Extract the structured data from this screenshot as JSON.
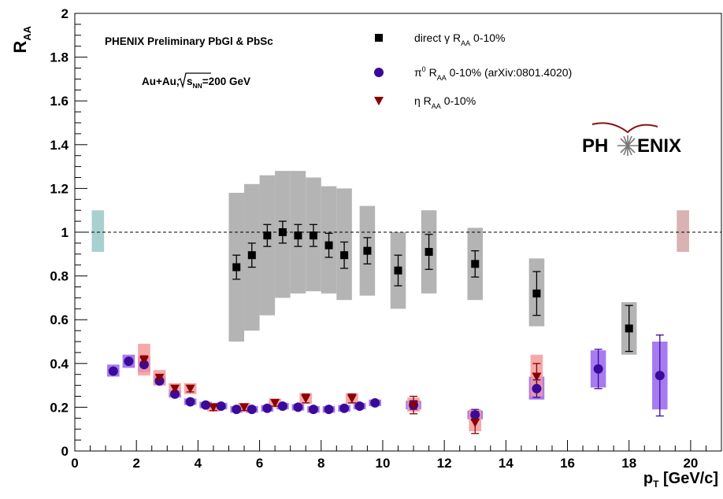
{
  "chart_data": {
    "type": "scatter",
    "ylabel_main": "R",
    "ylabel_sub": "AA",
    "xlabel_main": "p",
    "xlabel_sub": "T",
    "xlabel_unit": " [GeV/c]",
    "xlim": [
      0,
      21
    ],
    "ylim": [
      0,
      2
    ],
    "x_ticks": [
      0,
      2,
      4,
      6,
      8,
      10,
      12,
      14,
      16,
      18,
      20
    ],
    "y_ticks": [
      0,
      0.2,
      0.4,
      0.6,
      0.8,
      1,
      1.2,
      1.4,
      1.6,
      1.8,
      2
    ],
    "y_tick_labels": [
      "0",
      "0.2",
      "0.4",
      "0.6",
      "0.8",
      "1",
      "1.2",
      "1.4",
      "1.6",
      "1.8",
      "2"
    ],
    "reference_line_y": 1,
    "annotation_1": "PHENIX Preliminary PbGl & PbSc",
    "annotation_2_pre": "Au+Au,",
    "annotation_2_rad": "s",
    "annotation_2_sub": "NN",
    "annotation_2_post": "=200 GeV",
    "logo_left": "PH",
    "logo_right": "ENIX",
    "legend_placement": "top-right",
    "colors": {
      "gamma_box": "#b4b4b4",
      "pi0_marker": "#3a0a9a",
      "pi0_box": "#a77bf0",
      "eta_marker": "#8b0000",
      "eta_box": "#f59a9a",
      "left_norm": "#a9d0d0",
      "right_norm": "#d9b3b3"
    },
    "norm_boxes": [
      {
        "x": 0.75,
        "ylo": 0.91,
        "yhi": 1.1,
        "color": "left_norm"
      },
      {
        "x": 19.75,
        "ylo": 0.91,
        "yhi": 1.1,
        "color": "right_norm"
      }
    ],
    "series": [
      {
        "name": "direct",
        "name_mid": " γ R",
        "name_sub": "AA",
        "name_post": " 0-10%",
        "marker": "square",
        "points": [
          {
            "x": 5.25,
            "y": 0.84,
            "err": 0.055,
            "syslo": 0.5,
            "syshi": 1.18,
            "bw": 0.5
          },
          {
            "x": 5.75,
            "y": 0.895,
            "err": 0.055,
            "syslo": 0.55,
            "syshi": 1.22,
            "bw": 0.5
          },
          {
            "x": 6.25,
            "y": 0.985,
            "err": 0.05,
            "syslo": 0.62,
            "syshi": 1.26,
            "bw": 0.5
          },
          {
            "x": 6.75,
            "y": 1.0,
            "err": 0.05,
            "syslo": 0.7,
            "syshi": 1.28,
            "bw": 0.5
          },
          {
            "x": 7.25,
            "y": 0.985,
            "err": 0.05,
            "syslo": 0.72,
            "syshi": 1.28,
            "bw": 0.5
          },
          {
            "x": 7.75,
            "y": 0.985,
            "err": 0.05,
            "syslo": 0.73,
            "syshi": 1.25,
            "bw": 0.5
          },
          {
            "x": 8.25,
            "y": 0.94,
            "err": 0.055,
            "syslo": 0.72,
            "syshi": 1.21,
            "bw": 0.5
          },
          {
            "x": 8.75,
            "y": 0.895,
            "err": 0.06,
            "syslo": 0.69,
            "syshi": 1.2,
            "bw": 0.5
          },
          {
            "x": 9.5,
            "y": 0.915,
            "err": 0.06,
            "syslo": 0.71,
            "syshi": 1.12,
            "bw": 0.5
          },
          {
            "x": 10.5,
            "y": 0.825,
            "err": 0.07,
            "syslo": 0.65,
            "syshi": 1.0,
            "bw": 0.5
          },
          {
            "x": 11.5,
            "y": 0.91,
            "err": 0.08,
            "syslo": 0.72,
            "syshi": 1.1,
            "bw": 0.5
          },
          {
            "x": 13.0,
            "y": 0.855,
            "err": 0.06,
            "syslo": 0.69,
            "syshi": 1.02,
            "bw": 0.5
          },
          {
            "x": 15.0,
            "y": 0.72,
            "err": 0.1,
            "syslo": 0.57,
            "syshi": 0.88,
            "bw": 0.5
          },
          {
            "x": 18.0,
            "y": 0.56,
            "err": 0.105,
            "syslo": 0.44,
            "syshi": 0.68,
            "bw": 0.5
          }
        ]
      },
      {
        "name": "π",
        "name_sup": "0",
        "name_mid": " R",
        "name_sub": "AA",
        "name_post": " 0-10% (arXiv:0801.4020)",
        "marker": "circle",
        "points": [
          {
            "x": 1.25,
            "y": 0.365,
            "err": 0.01,
            "syslo": 0.34,
            "syshi": 0.395,
            "bw": 0.4
          },
          {
            "x": 1.75,
            "y": 0.41,
            "err": 0.01,
            "syslo": 0.38,
            "syshi": 0.44,
            "bw": 0.4
          },
          {
            "x": 2.25,
            "y": 0.395,
            "err": 0.01,
            "syslo": 0.36,
            "syshi": 0.43,
            "bw": 0.4
          },
          {
            "x": 2.75,
            "y": 0.32,
            "err": 0.01,
            "syslo": 0.3,
            "syshi": 0.345,
            "bw": 0.4
          },
          {
            "x": 3.25,
            "y": 0.26,
            "err": 0.01,
            "syslo": 0.245,
            "syshi": 0.28,
            "bw": 0.4
          },
          {
            "x": 3.75,
            "y": 0.225,
            "err": 0.008,
            "syslo": 0.21,
            "syshi": 0.24,
            "bw": 0.4
          },
          {
            "x": 4.25,
            "y": 0.21,
            "err": 0.008,
            "syslo": 0.195,
            "syshi": 0.225,
            "bw": 0.4
          },
          {
            "x": 4.75,
            "y": 0.205,
            "err": 0.008,
            "syslo": 0.19,
            "syshi": 0.22,
            "bw": 0.4
          },
          {
            "x": 5.25,
            "y": 0.19,
            "err": 0.008,
            "syslo": 0.175,
            "syshi": 0.205,
            "bw": 0.4
          },
          {
            "x": 5.75,
            "y": 0.19,
            "err": 0.008,
            "syslo": 0.175,
            "syshi": 0.205,
            "bw": 0.4
          },
          {
            "x": 6.25,
            "y": 0.195,
            "err": 0.008,
            "syslo": 0.18,
            "syshi": 0.21,
            "bw": 0.4
          },
          {
            "x": 6.75,
            "y": 0.205,
            "err": 0.008,
            "syslo": 0.19,
            "syshi": 0.22,
            "bw": 0.4
          },
          {
            "x": 7.25,
            "y": 0.2,
            "err": 0.008,
            "syslo": 0.185,
            "syshi": 0.215,
            "bw": 0.4
          },
          {
            "x": 7.75,
            "y": 0.19,
            "err": 0.008,
            "syslo": 0.175,
            "syshi": 0.205,
            "bw": 0.4
          },
          {
            "x": 8.25,
            "y": 0.19,
            "err": 0.008,
            "syslo": 0.175,
            "syshi": 0.205,
            "bw": 0.4
          },
          {
            "x": 8.75,
            "y": 0.195,
            "err": 0.008,
            "syslo": 0.18,
            "syshi": 0.21,
            "bw": 0.4
          },
          {
            "x": 9.25,
            "y": 0.205,
            "err": 0.01,
            "syslo": 0.19,
            "syshi": 0.22,
            "bw": 0.4
          },
          {
            "x": 9.75,
            "y": 0.22,
            "err": 0.01,
            "syslo": 0.205,
            "syshi": 0.235,
            "bw": 0.4
          },
          {
            "x": 11.0,
            "y": 0.21,
            "err": 0.02,
            "syslo": 0.19,
            "syshi": 0.23,
            "bw": 0.5
          },
          {
            "x": 13.0,
            "y": 0.165,
            "err": 0.025,
            "syslo": 0.145,
            "syshi": 0.185,
            "bw": 0.5
          },
          {
            "x": 15.0,
            "y": 0.285,
            "err": 0.04,
            "syslo": 0.235,
            "syshi": 0.34,
            "bw": 0.5
          },
          {
            "x": 17.0,
            "y": 0.375,
            "err": 0.09,
            "syslo": 0.29,
            "syshi": 0.46,
            "bw": 0.5
          },
          {
            "x": 19.0,
            "y": 0.345,
            "err": 0.185,
            "syslo": 0.19,
            "syshi": 0.5,
            "bw": 0.5
          }
        ]
      },
      {
        "name": "η",
        "name_mid": " R",
        "name_sub": "AA",
        "name_post": " 0-10%",
        "marker": "triangle-down",
        "points": [
          {
            "x": 2.25,
            "y": 0.415,
            "err": 0.02,
            "syslo": 0.345,
            "syshi": 0.49,
            "bw": 0.4
          },
          {
            "x": 2.75,
            "y": 0.335,
            "err": 0.015,
            "syslo": 0.3,
            "syshi": 0.37,
            "bw": 0.4
          },
          {
            "x": 3.25,
            "y": 0.285,
            "err": 0.015,
            "syslo": 0.26,
            "syshi": 0.31,
            "bw": 0.4
          },
          {
            "x": 3.75,
            "y": 0.285,
            "err": 0.015,
            "syslo": 0.26,
            "syshi": 0.31,
            "bw": 0.4
          },
          {
            "x": 4.5,
            "y": 0.2,
            "err": 0.015,
            "syslo": 0.18,
            "syshi": 0.22,
            "bw": 0.4
          },
          {
            "x": 5.5,
            "y": 0.2,
            "err": 0.015,
            "syslo": 0.18,
            "syshi": 0.22,
            "bw": 0.4
          },
          {
            "x": 6.5,
            "y": 0.22,
            "err": 0.015,
            "syslo": 0.2,
            "syshi": 0.24,
            "bw": 0.4
          },
          {
            "x": 7.5,
            "y": 0.24,
            "err": 0.02,
            "syslo": 0.215,
            "syshi": 0.265,
            "bw": 0.4
          },
          {
            "x": 9.0,
            "y": 0.24,
            "err": 0.02,
            "syslo": 0.215,
            "syshi": 0.265,
            "bw": 0.4
          },
          {
            "x": 11.0,
            "y": 0.21,
            "err": 0.04,
            "syslo": 0.18,
            "syshi": 0.245,
            "bw": 0.4
          },
          {
            "x": 13.0,
            "y": 0.13,
            "err": 0.05,
            "syslo": 0.09,
            "syshi": 0.19,
            "bw": 0.4
          },
          {
            "x": 15.0,
            "y": 0.34,
            "err": 0.06,
            "syslo": 0.25,
            "syshi": 0.44,
            "bw": 0.4
          }
        ]
      }
    ]
  }
}
